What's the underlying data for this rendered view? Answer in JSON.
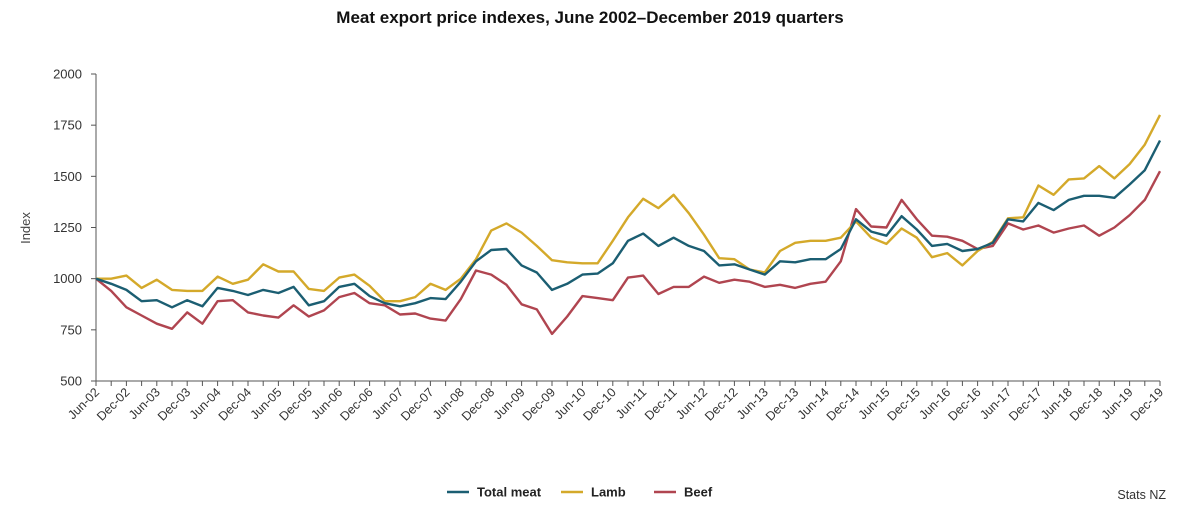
{
  "chart_data": {
    "type": "line",
    "title": "Meat export price indexes, June 2002–December 2019 quarters",
    "ylabel": "Index",
    "xlabel": "",
    "ylim": [
      500,
      2000
    ],
    "yticks": [
      500,
      750,
      1000,
      1250,
      1500,
      1750,
      2000
    ],
    "x": [
      "Jun-02",
      "Sep-02",
      "Dec-02",
      "Mar-03",
      "Jun-03",
      "Sep-03",
      "Dec-03",
      "Mar-04",
      "Jun-04",
      "Sep-04",
      "Dec-04",
      "Mar-05",
      "Jun-05",
      "Sep-05",
      "Dec-05",
      "Mar-06",
      "Jun-06",
      "Sep-06",
      "Dec-06",
      "Mar-07",
      "Jun-07",
      "Sep-07",
      "Dec-07",
      "Mar-08",
      "Jun-08",
      "Sep-08",
      "Dec-08",
      "Mar-09",
      "Jun-09",
      "Sep-09",
      "Dec-09",
      "Mar-10",
      "Jun-10",
      "Sep-10",
      "Dec-10",
      "Mar-11",
      "Jun-11",
      "Sep-11",
      "Dec-11",
      "Mar-12",
      "Jun-12",
      "Sep-12",
      "Dec-12",
      "Mar-13",
      "Jun-13",
      "Sep-13",
      "Dec-13",
      "Mar-14",
      "Jun-14",
      "Sep-14",
      "Dec-14",
      "Mar-15",
      "Jun-15",
      "Sep-15",
      "Dec-15",
      "Mar-16",
      "Jun-16",
      "Sep-16",
      "Dec-16",
      "Mar-17",
      "Jun-17",
      "Sep-17",
      "Dec-17",
      "Mar-18",
      "Jun-18",
      "Sep-18",
      "Dec-18",
      "Mar-19",
      "Jun-19",
      "Sep-19",
      "Dec-19"
    ],
    "xtick_labels": [
      "Jun-02",
      "Dec-02",
      "Jun-03",
      "Dec-03",
      "Jun-04",
      "Dec-04",
      "Jun-05",
      "Dec-05",
      "Jun-06",
      "Dec-06",
      "Jun-07",
      "Dec-07",
      "Jun-08",
      "Dec-08",
      "Jun-09",
      "Dec-09",
      "Jun-10",
      "Dec-10",
      "Jun-11",
      "Dec-11",
      "Jun-12",
      "Dec-12",
      "Jun-13",
      "Dec-13",
      "Jun-14",
      "Dec-14",
      "Jun-15",
      "Dec-15",
      "Jun-16",
      "Dec-16",
      "Jun-17",
      "Dec-17",
      "Jun-18",
      "Dec-18",
      "Jun-19",
      "Dec-19"
    ],
    "series": [
      {
        "name": "Total meat",
        "color": "#1b5e72",
        "values": [
          1000,
          975,
          945,
          890,
          895,
          860,
          895,
          865,
          955,
          940,
          920,
          945,
          930,
          960,
          870,
          890,
          960,
          975,
          915,
          880,
          865,
          880,
          905,
          900,
          985,
          1085,
          1140,
          1145,
          1065,
          1030,
          945,
          975,
          1020,
          1025,
          1075,
          1185,
          1220,
          1160,
          1200,
          1160,
          1135,
          1065,
          1070,
          1045,
          1020,
          1085,
          1080,
          1095,
          1095,
          1145,
          1290,
          1230,
          1210,
          1305,
          1240,
          1160,
          1170,
          1135,
          1145,
          1175,
          1290,
          1280,
          1370,
          1335,
          1385,
          1405,
          1405,
          1395,
          1460,
          1530,
          1675
        ]
      },
      {
        "name": "Lamb",
        "color": "#d4a92a",
        "values": [
          1000,
          1000,
          1015,
          955,
          995,
          945,
          940,
          940,
          1010,
          975,
          995,
          1070,
          1035,
          1035,
          950,
          940,
          1005,
          1020,
          965,
          890,
          890,
          910,
          975,
          945,
          1000,
          1095,
          1235,
          1270,
          1225,
          1160,
          1090,
          1080,
          1075,
          1075,
          1185,
          1300,
          1390,
          1345,
          1410,
          1320,
          1215,
          1100,
          1095,
          1045,
          1030,
          1135,
          1175,
          1185,
          1185,
          1200,
          1280,
          1200,
          1170,
          1245,
          1200,
          1105,
          1125,
          1065,
          1135,
          1180,
          1295,
          1300,
          1455,
          1410,
          1485,
          1490,
          1550,
          1490,
          1560,
          1655,
          1800
        ]
      },
      {
        "name": "Beef",
        "color": "#b04550",
        "values": [
          1000,
          940,
          860,
          820,
          780,
          755,
          835,
          780,
          890,
          895,
          835,
          820,
          810,
          870,
          815,
          845,
          910,
          930,
          880,
          870,
          825,
          830,
          805,
          795,
          900,
          1040,
          1020,
          970,
          875,
          850,
          730,
          815,
          915,
          905,
          895,
          1005,
          1015,
          925,
          960,
          960,
          1010,
          980,
          995,
          985,
          960,
          970,
          955,
          975,
          985,
          1085,
          1340,
          1255,
          1250,
          1385,
          1290,
          1210,
          1205,
          1185,
          1145,
          1160,
          1270,
          1240,
          1260,
          1225,
          1245,
          1260,
          1210,
          1250,
          1310,
          1385,
          1525
        ]
      }
    ],
    "grid": false,
    "legend_position": "bottom-center"
  },
  "source_text": "Stats NZ"
}
